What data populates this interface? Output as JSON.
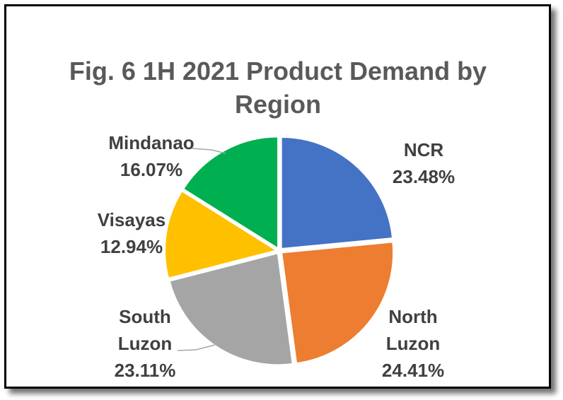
{
  "chart_data": {
    "type": "pie",
    "title": "Fig. 6  1H 2021 Product Demand by Region",
    "title_lines": [
      "Fig. 6  1H 2021 Product Demand by",
      "Region"
    ],
    "slices": [
      {
        "name": "NCR",
        "name_lines": [
          "NCR"
        ],
        "value": 23.48,
        "label": "23.48%",
        "color": "#4472C4"
      },
      {
        "name": "North Luzon",
        "name_lines": [
          "North",
          "Luzon"
        ],
        "value": 24.41,
        "label": "24.41%",
        "color": "#ED7D31"
      },
      {
        "name": "South Luzon",
        "name_lines": [
          "South",
          "Luzon"
        ],
        "value": 23.11,
        "label": "23.11%",
        "color": "#A5A5A5"
      },
      {
        "name": "Visayas",
        "name_lines": [
          "Visayas"
        ],
        "value": 12.94,
        "label": "12.94%",
        "color": "#FFC000"
      },
      {
        "name": "Mindanao",
        "name_lines": [
          "Mindanao"
        ],
        "value": 16.07,
        "label": "16.07%",
        "color": "#00B050"
      }
    ],
    "legend": "none"
  }
}
